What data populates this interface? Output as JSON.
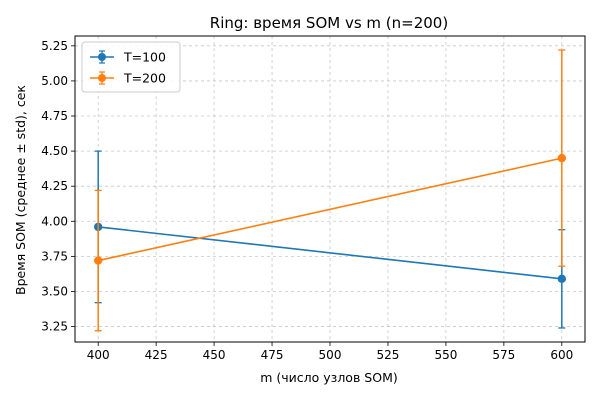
{
  "chart_data": {
    "type": "line",
    "title": "Ring: время SOM vs m (n=200)",
    "xlabel": "m (число узлов SOM)",
    "ylabel": "Время SOM (среднее ± std), сек",
    "x": [
      400,
      600
    ],
    "xlim": [
      390,
      610
    ],
    "ylim": [
      3.14,
      5.32
    ],
    "xticks": [
      400,
      425,
      450,
      475,
      500,
      525,
      550,
      575,
      600
    ],
    "yticks": [
      3.25,
      3.5,
      3.75,
      4.0,
      4.25,
      4.5,
      4.75,
      5.0,
      5.25
    ],
    "xtick_labels": [
      "400",
      "425",
      "450",
      "475",
      "500",
      "525",
      "550",
      "575",
      "600"
    ],
    "ytick_labels": [
      "3.25",
      "3.50",
      "3.75",
      "4.00",
      "4.25",
      "4.50",
      "4.75",
      "5.00",
      "5.25"
    ],
    "grid": true,
    "legend_position": "top-left",
    "series": [
      {
        "name": "T=100",
        "color": "#1f77b4",
        "values": [
          3.96,
          3.59
        ],
        "std": [
          0.54,
          0.35
        ]
      },
      {
        "name": "T=200",
        "color": "#ff7f0e",
        "values": [
          3.72,
          4.45
        ],
        "std": [
          0.5,
          0.77
        ]
      }
    ]
  }
}
